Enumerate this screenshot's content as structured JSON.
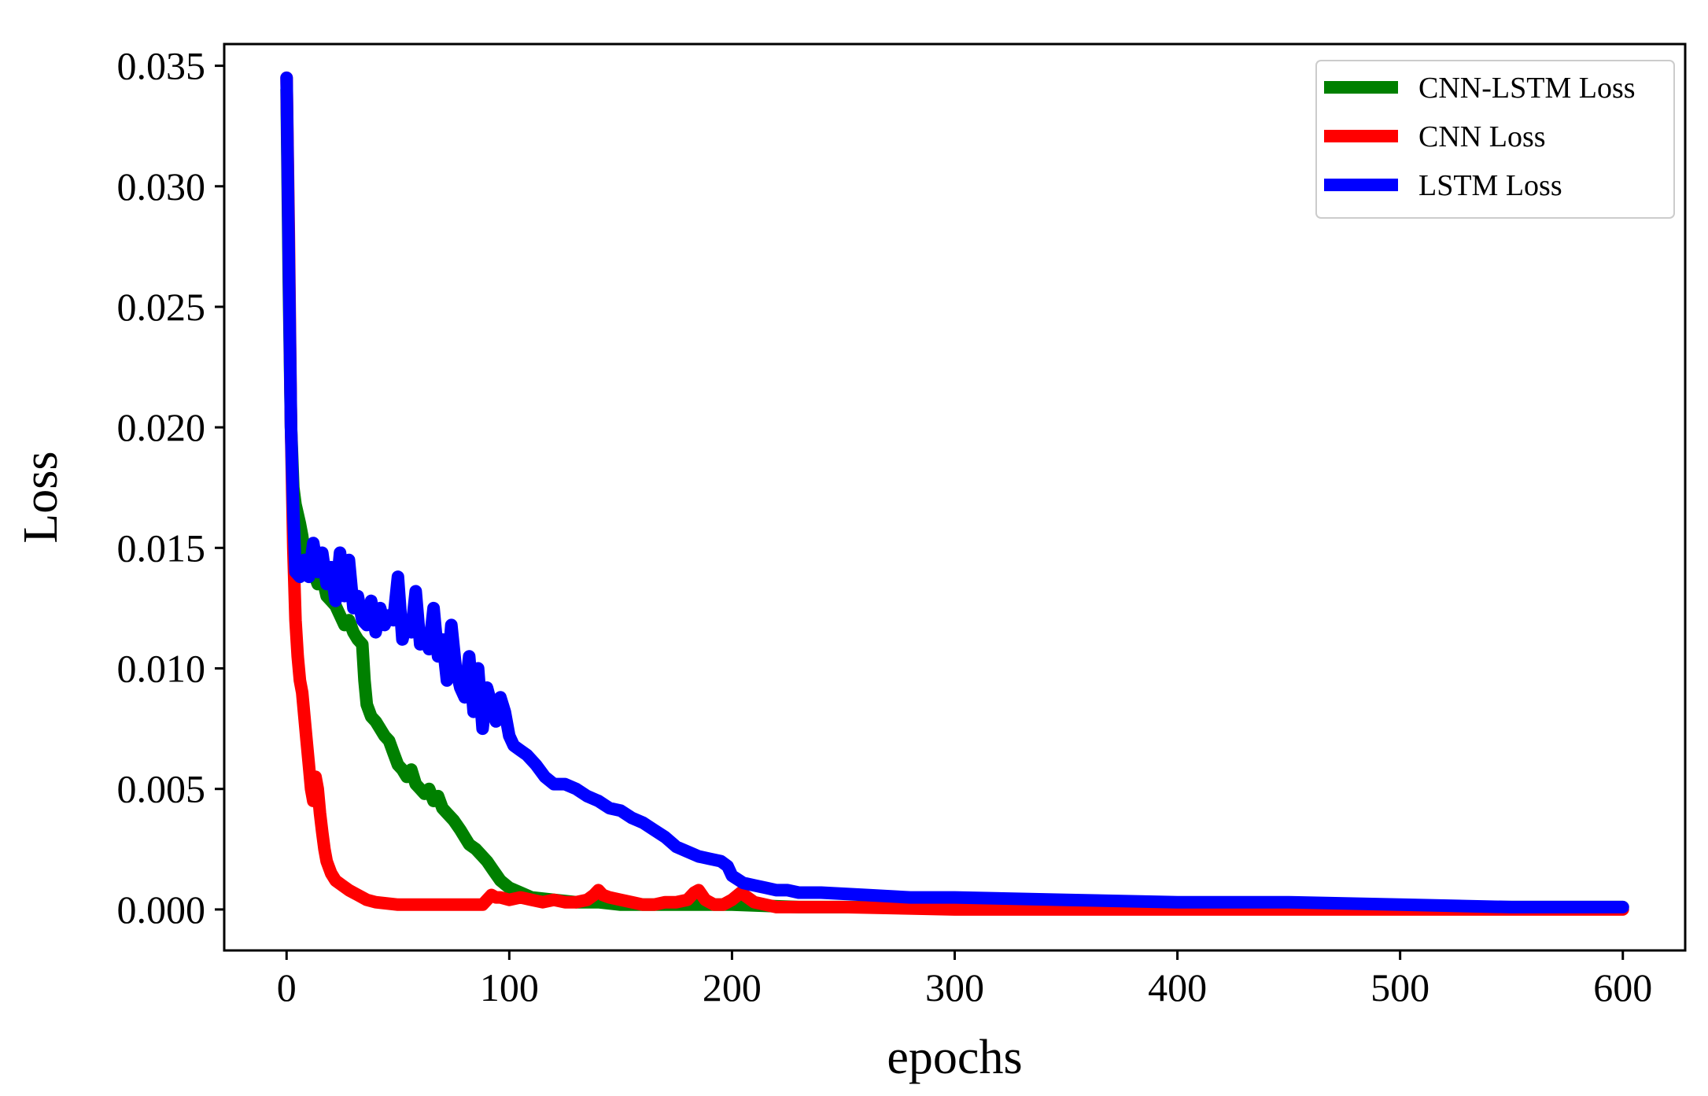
{
  "chart_data": {
    "type": "line",
    "title": "",
    "xlabel": "epochs",
    "ylabel": "Loss",
    "xlim": [
      -28,
      628
    ],
    "ylim": [
      -0.0017,
      0.0359
    ],
    "x_ticks": [
      0,
      100,
      200,
      300,
      400,
      500,
      600
    ],
    "x_tick_labels": [
      "0",
      "100",
      "200",
      "300",
      "400",
      "500",
      "600"
    ],
    "y_ticks": [
      0.0,
      0.005,
      0.01,
      0.015,
      0.02,
      0.025,
      0.03,
      0.035
    ],
    "y_tick_labels": [
      "0.000",
      "0.005",
      "0.010",
      "0.015",
      "0.020",
      "0.025",
      "0.030",
      "0.035"
    ],
    "grid": false,
    "legend_position": "top-right",
    "series": [
      {
        "name": "CNN-LSTM Loss",
        "color": "#008000",
        "x": [
          0,
          1,
          2,
          3,
          4,
          5,
          6,
          7,
          8,
          10,
          12,
          14,
          16,
          18,
          20,
          22,
          24,
          26,
          28,
          30,
          32,
          34,
          35,
          36,
          38,
          40,
          42,
          44,
          46,
          48,
          50,
          52,
          54,
          56,
          58,
          60,
          62,
          64,
          66,
          68,
          70,
          72,
          75,
          78,
          80,
          82,
          85,
          88,
          90,
          93,
          96,
          100,
          105,
          110,
          120,
          130,
          140,
          150,
          160,
          180,
          200,
          230,
          260,
          300,
          400,
          500,
          600
        ],
        "y": [
          0.034,
          0.026,
          0.02,
          0.0175,
          0.0168,
          0.0164,
          0.016,
          0.0155,
          0.0148,
          0.0145,
          0.014,
          0.0135,
          0.0138,
          0.013,
          0.0128,
          0.0126,
          0.0122,
          0.0118,
          0.012,
          0.0115,
          0.0112,
          0.011,
          0.0095,
          0.0085,
          0.008,
          0.0078,
          0.0075,
          0.0072,
          0.007,
          0.0065,
          0.006,
          0.0058,
          0.0055,
          0.0058,
          0.0052,
          0.005,
          0.0048,
          0.005,
          0.0045,
          0.0047,
          0.0042,
          0.004,
          0.0037,
          0.0033,
          0.003,
          0.0027,
          0.0025,
          0.0022,
          0.002,
          0.0016,
          0.0012,
          0.0009,
          0.0007,
          0.0005,
          0.0004,
          0.0003,
          0.0003,
          0.0002,
          0.0002,
          0.0002,
          0.0002,
          0.0001,
          0.0001,
          0.0001,
          0.0001,
          0.0001,
          0.0001
        ]
      },
      {
        "name": "CNN Loss",
        "color": "#ff0000",
        "x": [
          0,
          1,
          2,
          3,
          4,
          5,
          6,
          7,
          8,
          9,
          10,
          11,
          12,
          13,
          14,
          15,
          16,
          17,
          18,
          20,
          22,
          25,
          28,
          32,
          36,
          40,
          50,
          60,
          70,
          80,
          88,
          90,
          92,
          94,
          96,
          100,
          105,
          110,
          115,
          120,
          125,
          130,
          135,
          138,
          140,
          142,
          145,
          150,
          155,
          160,
          165,
          170,
          175,
          180,
          183,
          185,
          188,
          192,
          196,
          200,
          204,
          207,
          210,
          215,
          220,
          230,
          240,
          250,
          300,
          400,
          500,
          600
        ],
        "y": [
          0.0345,
          0.028,
          0.02,
          0.015,
          0.012,
          0.0105,
          0.0095,
          0.009,
          0.008,
          0.007,
          0.006,
          0.005,
          0.0045,
          0.0055,
          0.005,
          0.004,
          0.0032,
          0.0025,
          0.002,
          0.0015,
          0.0012,
          0.001,
          0.0008,
          0.0006,
          0.0004,
          0.0003,
          0.0002,
          0.0002,
          0.0002,
          0.0002,
          0.0002,
          0.0004,
          0.0006,
          0.0005,
          0.0005,
          0.0004,
          0.0005,
          0.0004,
          0.0003,
          0.0004,
          0.0003,
          0.0003,
          0.0004,
          0.0006,
          0.0008,
          0.0006,
          0.0005,
          0.0004,
          0.0003,
          0.0002,
          0.0002,
          0.0003,
          0.0003,
          0.0004,
          0.0007,
          0.0008,
          0.0004,
          0.0002,
          0.0002,
          0.0004,
          0.0007,
          0.0005,
          0.0003,
          0.0002,
          0.0001,
          0.0001,
          0.0001,
          0.0001,
          0.0,
          0.0,
          0.0,
          0.0
        ]
      },
      {
        "name": "LSTM Loss",
        "color": "#0000ff",
        "x": [
          0,
          1,
          2,
          3,
          4,
          6,
          8,
          10,
          12,
          14,
          16,
          18,
          20,
          22,
          24,
          26,
          28,
          30,
          32,
          34,
          36,
          38,
          40,
          42,
          44,
          46,
          48,
          50,
          52,
          54,
          56,
          58,
          60,
          62,
          64,
          66,
          68,
          70,
          72,
          74,
          76,
          78,
          80,
          82,
          84,
          86,
          88,
          90,
          92,
          94,
          96,
          98,
          100,
          102,
          105,
          108,
          112,
          116,
          120,
          125,
          130,
          135,
          140,
          145,
          150,
          155,
          160,
          165,
          170,
          175,
          180,
          185,
          190,
          195,
          198,
          200,
          205,
          210,
          215,
          220,
          225,
          230,
          240,
          260,
          280,
          300,
          350,
          400,
          450,
          500,
          550,
          600
        ],
        "y": [
          0.0345,
          0.027,
          0.02,
          0.0165,
          0.014,
          0.0138,
          0.0145,
          0.0138,
          0.0152,
          0.014,
          0.0148,
          0.0135,
          0.0142,
          0.0128,
          0.0148,
          0.013,
          0.0145,
          0.0125,
          0.013,
          0.012,
          0.0118,
          0.0128,
          0.0115,
          0.0125,
          0.0118,
          0.0122,
          0.012,
          0.0138,
          0.0112,
          0.012,
          0.0115,
          0.0132,
          0.011,
          0.0112,
          0.0108,
          0.0125,
          0.0105,
          0.0112,
          0.0095,
          0.0118,
          0.01,
          0.0092,
          0.0088,
          0.0105,
          0.0082,
          0.01,
          0.0075,
          0.0092,
          0.0085,
          0.0078,
          0.0088,
          0.0082,
          0.0072,
          0.0068,
          0.0066,
          0.0064,
          0.006,
          0.0055,
          0.0052,
          0.0052,
          0.005,
          0.0047,
          0.0045,
          0.0042,
          0.0041,
          0.0038,
          0.0036,
          0.0033,
          0.003,
          0.0026,
          0.0024,
          0.0022,
          0.0021,
          0.002,
          0.0018,
          0.0014,
          0.0011,
          0.001,
          0.0009,
          0.0008,
          0.0008,
          0.0007,
          0.0007,
          0.0006,
          0.0005,
          0.0005,
          0.0004,
          0.0003,
          0.0003,
          0.0002,
          0.0001,
          0.0001
        ]
      }
    ]
  }
}
